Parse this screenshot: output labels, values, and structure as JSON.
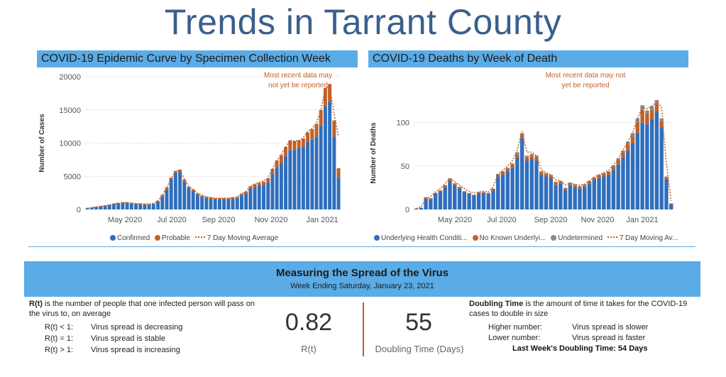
{
  "page": {
    "title": "Trends in Tarrant County"
  },
  "chart_data": [
    {
      "type": "bar",
      "title": "COVID-19 Epidemic Curve by Specimen Collection Week",
      "ylabel": "Number of Cases",
      "xlabel": "",
      "ylim": [
        0,
        20000
      ],
      "yticks": [
        "0",
        "5000",
        "10000",
        "15000",
        "20000"
      ],
      "xtick_labels": [
        "May 2020",
        "Jul 2020",
        "Sep 2020",
        "Nov 2020",
        "Jan 2021"
      ],
      "annotation": [
        "Most recent data may",
        "not yet be reported"
      ],
      "legend": [
        "Confirmed",
        "Probable",
        "7 Day Moving Average"
      ],
      "stacked": true,
      "grid": true,
      "series": [
        {
          "name": "Confirmed",
          "color": "#2f6ebd",
          "values": [
            200,
            300,
            400,
            500,
            600,
            700,
            800,
            900,
            1000,
            1000,
            900,
            800,
            800,
            700,
            700,
            800,
            1200,
            2000,
            3000,
            4500,
            5500,
            5700,
            4200,
            3200,
            2800,
            2200,
            1900,
            1700,
            1600,
            1500,
            1500,
            1500,
            1500,
            1600,
            1700,
            2100,
            2400,
            3100,
            3400,
            3600,
            3700,
            4100,
            5300,
            6400,
            7000,
            8000,
            8900,
            9000,
            9200,
            9400,
            10200,
            10500,
            11000,
            12600,
            15500,
            16200,
            11000,
            4800
          ]
        },
        {
          "name": "Probable",
          "color": "#c0602a",
          "values": [
            0,
            0,
            0,
            0,
            0,
            0,
            100,
            100,
            100,
            100,
            100,
            100,
            100,
            100,
            100,
            100,
            100,
            200,
            300,
            300,
            300,
            300,
            300,
            200,
            200,
            200,
            200,
            200,
            200,
            200,
            200,
            200,
            200,
            200,
            200,
            300,
            300,
            400,
            400,
            400,
            500,
            600,
            800,
            1000,
            1200,
            1400,
            1500,
            1300,
            1200,
            1300,
            1400,
            1600,
            1900,
            2400,
            2800,
            2700,
            2400,
            1400
          ]
        }
      ],
      "moving_average": [
        200,
        280,
        380,
        470,
        570,
        680,
        820,
        920,
        1000,
        1000,
        960,
        900,
        860,
        820,
        820,
        920,
        1300,
        2100,
        3250,
        4700,
        5700,
        5900,
        4600,
        3500,
        3000,
        2450,
        2150,
        1900,
        1800,
        1700,
        1700,
        1700,
        1700,
        1800,
        1900,
        2300,
        2700,
        3450,
        3850,
        4100,
        4300,
        4750,
        6100,
        7400,
        8200,
        9400,
        10400,
        10300,
        10400,
        10800,
        11700,
        12200,
        13000,
        15000,
        18200,
        18500,
        14500,
        11000
      ]
    },
    {
      "type": "bar",
      "title": "COVID-19 Deaths by Week of Death",
      "ylabel": "Number of Deaths",
      "xlabel": "",
      "ylim": [
        0,
        130
      ],
      "yticks": [
        "0",
        "50",
        "100"
      ],
      "xtick_labels": [
        "May 2020",
        "Jul 2020",
        "Sep 2020",
        "Nov 2020",
        "Jan 2021"
      ],
      "annotation": [
        "Most recent data may not",
        "yet be reported"
      ],
      "legend": [
        "Underlying Health Conditi...",
        "No Known Underlyi...",
        "Undetermined",
        "7 Day Moving Av..."
      ],
      "stacked": true,
      "grid": true,
      "series": [
        {
          "name": "Underlying Health Conditi...",
          "color": "#2f6ebd",
          "values": [
            1,
            2,
            13,
            12,
            18,
            20,
            26,
            33,
            28,
            24,
            20,
            18,
            16,
            19,
            19,
            18,
            22,
            38,
            40,
            44,
            48,
            60,
            82,
            56,
            58,
            56,
            40,
            38,
            36,
            28,
            30,
            22,
            28,
            26,
            24,
            26,
            30,
            34,
            36,
            38,
            40,
            45,
            52,
            60,
            68,
            76,
            88,
            100,
            98,
            104,
            112,
            94,
            35,
            6
          ]
        },
        {
          "name": "No Known Underlyi...",
          "color": "#c0602a",
          "values": [
            0,
            0,
            1,
            1,
            1,
            2,
            2,
            2,
            2,
            2,
            1,
            1,
            1,
            1,
            1,
            1,
            2,
            2,
            3,
            3,
            4,
            4,
            4,
            4,
            4,
            4,
            3,
            3,
            3,
            3,
            2,
            2,
            2,
            2,
            2,
            2,
            2,
            2,
            3,
            3,
            3,
            4,
            5,
            6,
            7,
            8,
            12,
            14,
            12,
            10,
            10,
            8,
            2,
            1
          ]
        },
        {
          "name": "Undetermined",
          "color": "#888888",
          "values": [
            0,
            0,
            0,
            0,
            0,
            0,
            0,
            1,
            0,
            0,
            0,
            0,
            0,
            0,
            0,
            0,
            0,
            1,
            1,
            1,
            1,
            2,
            2,
            2,
            2,
            2,
            1,
            1,
            1,
            1,
            1,
            1,
            1,
            1,
            1,
            1,
            1,
            1,
            1,
            1,
            1,
            2,
            2,
            2,
            3,
            4,
            5,
            6,
            4,
            5,
            4,
            3,
            1,
            0
          ]
        }
      ],
      "moving_average": [
        1,
        3,
        12,
        15,
        20,
        24,
        30,
        35,
        32,
        28,
        24,
        21,
        19,
        20,
        21,
        20,
        26,
        40,
        45,
        50,
        56,
        68,
        90,
        66,
        66,
        62,
        46,
        42,
        40,
        34,
        33,
        28,
        30,
        29,
        28,
        29,
        33,
        37,
        40,
        42,
        45,
        51,
        58,
        68,
        78,
        88,
        104,
        118,
        116,
        119,
        124,
        118,
        55,
        10
      ]
    }
  ],
  "spread": {
    "title": "Measuring the Spread of the Virus",
    "subtitle": "Week Ending Saturday, January 23, 2021",
    "rt_term": "R(t)",
    "rt_desc": " is the number of people that one infected person will pass on the virus to, on average",
    "rt_rows": [
      {
        "cond": "R(t) < 1:",
        "text": "Virus spread is decreasing"
      },
      {
        "cond": "R(t) = 1:",
        "text": "Virus spread is stable"
      },
      {
        "cond": "R(t) > 1:",
        "text": "Virus spread is increasing"
      }
    ],
    "rt_value": "0.82",
    "rt_label": "R(t)",
    "dt_value": "55",
    "dt_label": "Doubling Time (Days)",
    "dt_term": "Doubling Time",
    "dt_desc": " is the amount of time it takes for the COVID-19 cases to double in size",
    "dt_rows": [
      {
        "cond": "Higher number:",
        "text": "Virus spread is slower"
      },
      {
        "cond": "Lower number:",
        "text": "Virus spread is faster"
      }
    ],
    "last_week": "Last Week's Doubling Time: 54 Days"
  }
}
